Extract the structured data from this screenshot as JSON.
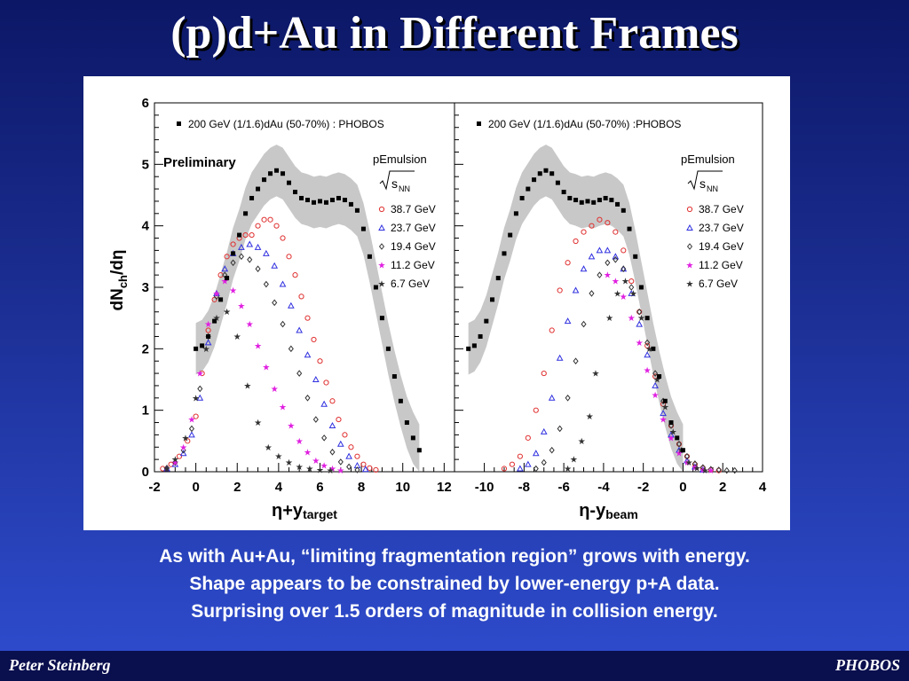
{
  "slide": {
    "title": "(p)d+Au in Different Frames",
    "caption_lines": [
      "As with Au+Au, “limiting fragmentation region” grows with energy.",
      "Shape appears to be constrained by lower-energy p+A data.",
      "Surprising over 1.5 orders of magnitude in collision energy."
    ],
    "footer_left": "Peter Steinberg",
    "footer_right": "PHOBOS"
  },
  "colors": {
    "black": "#000000",
    "red": "#e03030",
    "blue": "#3030e0",
    "dark": "#333333",
    "magenta": "#e020e0",
    "band": "#c8c8c8"
  },
  "chart_data": [
    {
      "type": "scatter",
      "panel": "left",
      "ylabel_main": "dN",
      "ylabel_sub": "ch",
      "ylabel_tail": "/dη",
      "xlabel_main": "η+y",
      "xlabel_sub": "target",
      "xlim": [
        -2,
        12.5
      ],
      "ylim": [
        0,
        6
      ],
      "xticks": [
        "-2",
        "0",
        "2",
        "4",
        "6",
        "8",
        "10",
        "12"
      ],
      "yticks": [
        "0",
        "1",
        "2",
        "3",
        "4",
        "5",
        "6"
      ],
      "annotation": "Preliminary",
      "legend_top": "200 GeV (1/1.6)dAu (50-70%) : PHOBOS",
      "legend_title": "pEmulsion",
      "legend_sqrt": "s",
      "legend_sqrt_sub": "NN",
      "series": [
        {
          "name": "38.7 GeV",
          "marker": "circle",
          "color": "#e03030",
          "x": [
            -1.6,
            -1.2,
            -0.8,
            -0.4,
            0,
            0.3,
            0.6,
            0.9,
            1.2,
            1.5,
            1.8,
            2.1,
            2.4,
            2.7,
            3,
            3.3,
            3.6,
            3.9,
            4.2,
            4.5,
            4.8,
            5.1,
            5.4,
            5.7,
            6,
            6.3,
            6.6,
            6.9,
            7.2,
            7.5,
            7.8,
            8.1,
            8.4,
            8.7
          ],
          "y": [
            0.05,
            0.12,
            0.25,
            0.5,
            0.9,
            1.6,
            2.3,
            2.8,
            3.2,
            3.5,
            3.7,
            3.8,
            3.85,
            3.85,
            4.0,
            4.1,
            4.1,
            4.0,
            3.8,
            3.5,
            3.2,
            2.85,
            2.5,
            2.15,
            1.8,
            1.45,
            1.15,
            0.85,
            0.6,
            0.4,
            0.25,
            0.12,
            0.06,
            0.03
          ]
        },
        {
          "name": "23.7 GeV",
          "marker": "triangle",
          "color": "#3030e0",
          "x": [
            -1.4,
            -1,
            -0.6,
            -0.2,
            0.2,
            0.6,
            1,
            1.4,
            1.8,
            2.2,
            2.6,
            3,
            3.4,
            3.8,
            4.2,
            4.6,
            5,
            5.4,
            5.8,
            6.2,
            6.6,
            7,
            7.4,
            7.8,
            8.2
          ],
          "y": [
            0.05,
            0.12,
            0.3,
            0.6,
            1.2,
            2.1,
            2.9,
            3.3,
            3.55,
            3.65,
            3.7,
            3.65,
            3.55,
            3.35,
            3.05,
            2.7,
            2.3,
            1.9,
            1.5,
            1.1,
            0.75,
            0.45,
            0.25,
            0.1,
            0.04
          ]
        },
        {
          "name": "19.4 GeV",
          "marker": "diamond",
          "color": "#333333",
          "x": [
            -1.4,
            -1,
            -0.6,
            -0.2,
            0.2,
            0.6,
            1,
            1.4,
            1.8,
            2.2,
            2.6,
            3,
            3.4,
            3.8,
            4.2,
            4.6,
            5,
            5.4,
            5.8,
            6.2,
            6.6,
            7,
            7.4,
            7.8
          ],
          "y": [
            0.06,
            0.15,
            0.35,
            0.7,
            1.35,
            2.2,
            2.85,
            3.2,
            3.4,
            3.5,
            3.45,
            3.3,
            3.05,
            2.75,
            2.4,
            2.0,
            1.6,
            1.2,
            0.85,
            0.55,
            0.32,
            0.16,
            0.08,
            0.03
          ]
        },
        {
          "name": "11.2 GeV",
          "marker": "star",
          "color": "#e020e0",
          "x": [
            -1.4,
            -1,
            -0.6,
            -0.2,
            0.2,
            0.6,
            1,
            1.4,
            1.8,
            2.2,
            2.6,
            3,
            3.4,
            3.8,
            4.2,
            4.6,
            5,
            5.4,
            5.8,
            6.2,
            6.6,
            7
          ],
          "y": [
            0.05,
            0.15,
            0.4,
            0.85,
            1.6,
            2.4,
            2.9,
            3.1,
            2.95,
            2.7,
            2.4,
            2.05,
            1.7,
            1.35,
            1.05,
            0.75,
            0.5,
            0.32,
            0.18,
            0.1,
            0.05,
            0.02
          ]
        },
        {
          "name": "6.7 GeV",
          "marker": "star",
          "color": "#333333",
          "x": [
            -1.4,
            -1,
            -0.5,
            0,
            0.5,
            1,
            1.5,
            2,
            2.5,
            3,
            3.5,
            4,
            4.5,
            5,
            5.5,
            6,
            6.5
          ],
          "y": [
            0.05,
            0.2,
            0.55,
            1.2,
            2.0,
            2.5,
            2.6,
            2.2,
            1.4,
            0.8,
            0.4,
            0.25,
            0.15,
            0.08,
            0.05,
            0.03,
            0.02
          ]
        },
        {
          "name": "200 GeV (1/1.6)dAu (50-70%) : PHOBOS",
          "marker": "square",
          "color": "#000000",
          "x": [
            0,
            0.3,
            0.6,
            0.9,
            1.2,
            1.5,
            1.8,
            2.1,
            2.4,
            2.7,
            3,
            3.3,
            3.6,
            3.9,
            4.2,
            4.5,
            4.8,
            5.1,
            5.4,
            5.7,
            6,
            6.3,
            6.6,
            6.9,
            7.2,
            7.5,
            7.8,
            8.1,
            8.4,
            8.7,
            9,
            9.3,
            9.6,
            9.9,
            10.2,
            10.5,
            10.8
          ],
          "y": [
            2.0,
            2.05,
            2.2,
            2.45,
            2.8,
            3.15,
            3.55,
            3.85,
            4.2,
            4.45,
            4.6,
            4.75,
            4.85,
            4.9,
            4.85,
            4.7,
            4.55,
            4.45,
            4.42,
            4.38,
            4.4,
            4.38,
            4.42,
            4.45,
            4.42,
            4.35,
            4.25,
            3.95,
            3.5,
            3.0,
            2.5,
            2.0,
            1.55,
            1.15,
            0.8,
            0.55,
            0.35
          ],
          "band_half_width": 0.42
        }
      ]
    },
    {
      "type": "scatter",
      "panel": "right",
      "xlabel_main": "η-y",
      "xlabel_sub": "beam",
      "xlim": [
        -11.5,
        4
      ],
      "ylim": [
        0,
        6
      ],
      "xticks": [
        "-10",
        "-8",
        "-6",
        "-4",
        "-2",
        "0",
        "2",
        "4"
      ],
      "legend_top": "200 GeV (1/1.6)dAu (50-70%) :PHOBOS",
      "legend_title": "pEmulsion",
      "legend_sqrt": "s",
      "legend_sqrt_sub": "NN",
      "series": [
        {
          "name": "38.7 GeV",
          "marker": "circle",
          "color": "#e03030",
          "x": [
            -9,
            -8.6,
            -8.2,
            -7.8,
            -7.4,
            -7,
            -6.6,
            -6.2,
            -5.8,
            -5.4,
            -5,
            -4.6,
            -4.2,
            -3.8,
            -3.4,
            -3,
            -2.6,
            -2.2,
            -1.8,
            -1.4,
            -1,
            -0.6,
            -0.2,
            0.2,
            0.6,
            1,
            1.4,
            1.8
          ],
          "y": [
            0.05,
            0.12,
            0.25,
            0.55,
            1.0,
            1.6,
            2.3,
            2.95,
            3.4,
            3.75,
            3.9,
            4.0,
            4.1,
            4.05,
            3.9,
            3.6,
            3.1,
            2.6,
            2.05,
            1.55,
            1.1,
            0.75,
            0.45,
            0.25,
            0.12,
            0.06,
            0.03,
            0.02
          ]
        },
        {
          "name": "23.7 GeV",
          "marker": "triangle",
          "color": "#3030e0",
          "x": [
            -8.2,
            -7.8,
            -7.4,
            -7,
            -6.6,
            -6.2,
            -5.8,
            -5.4,
            -5,
            -4.6,
            -4.2,
            -3.8,
            -3.4,
            -3,
            -2.6,
            -2.2,
            -1.8,
            -1.4,
            -1,
            -0.6,
            -0.2,
            0.2,
            0.6,
            1
          ],
          "y": [
            0.05,
            0.12,
            0.3,
            0.65,
            1.2,
            1.85,
            2.45,
            2.95,
            3.3,
            3.5,
            3.6,
            3.6,
            3.5,
            3.3,
            2.9,
            2.4,
            1.9,
            1.4,
            0.95,
            0.6,
            0.35,
            0.18,
            0.08,
            0.03
          ]
        },
        {
          "name": "19.4 GeV",
          "marker": "diamond",
          "color": "#333333",
          "x": [
            -7.4,
            -7,
            -6.6,
            -6.2,
            -5.8,
            -5.4,
            -5,
            -4.6,
            -4.2,
            -3.8,
            -3.4,
            -3,
            -2.6,
            -2.2,
            -1.8,
            -1.4,
            -1,
            -0.6,
            -0.2,
            0.2,
            0.6,
            1,
            1.4,
            1.8,
            2.2,
            2.6
          ],
          "y": [
            0.05,
            0.15,
            0.35,
            0.7,
            1.2,
            1.8,
            2.4,
            2.9,
            3.2,
            3.4,
            3.45,
            3.3,
            3.0,
            2.6,
            2.1,
            1.6,
            1.15,
            0.75,
            0.45,
            0.25,
            0.13,
            0.07,
            0.04,
            0.03,
            0.02,
            0.02
          ]
        },
        {
          "name": "11.2 GeV",
          "marker": "star",
          "color": "#e020e0",
          "x": [
            -3.8,
            -3.4,
            -3,
            -2.6,
            -2.2,
            -1.8,
            -1.4,
            -1,
            -0.6,
            -0.2,
            0.2,
            0.6,
            1,
            1.4
          ],
          "y": [
            3.2,
            3.1,
            2.85,
            2.5,
            2.1,
            1.65,
            1.25,
            0.85,
            0.55,
            0.3,
            0.15,
            0.07,
            0.03,
            0.02
          ]
        },
        {
          "name": "6.7 GeV",
          "marker": "star",
          "color": "#333333",
          "x": [
            -5.8,
            -5.5,
            -5.1,
            -4.7,
            -4.4,
            -3.7,
            -3.3,
            -2.9,
            -2.5,
            -2.1,
            -1.7,
            -1.3,
            -0.9,
            -0.5,
            -0.1,
            0.3,
            0.7,
            1.1
          ],
          "y": [
            0.05,
            0.2,
            0.5,
            0.9,
            1.6,
            2.5,
            2.9,
            3.1,
            2.9,
            2.5,
            2.0,
            1.5,
            1.05,
            0.65,
            0.35,
            0.15,
            0.06,
            0.02
          ]
        },
        {
          "name": "200 GeV (1/1.6)dAu (50-70%) :PHOBOS",
          "marker": "square",
          "color": "#000000",
          "x": [
            -10.8,
            -10.5,
            -10.2,
            -9.9,
            -9.6,
            -9.3,
            -9,
            -8.7,
            -8.4,
            -8.1,
            -7.8,
            -7.5,
            -7.2,
            -6.9,
            -6.6,
            -6.3,
            -6,
            -5.7,
            -5.4,
            -5.1,
            -4.8,
            -4.5,
            -4.2,
            -3.9,
            -3.6,
            -3.3,
            -3,
            -2.7,
            -2.4,
            -2.1,
            -1.8,
            -1.5,
            -1.2,
            -0.9,
            -0.6,
            -0.3,
            0
          ],
          "y": [
            2.0,
            2.05,
            2.2,
            2.45,
            2.8,
            3.15,
            3.55,
            3.85,
            4.2,
            4.45,
            4.6,
            4.75,
            4.85,
            4.9,
            4.85,
            4.7,
            4.55,
            4.45,
            4.42,
            4.38,
            4.4,
            4.38,
            4.42,
            4.45,
            4.42,
            4.35,
            4.25,
            3.95,
            3.5,
            3.0,
            2.5,
            2.0,
            1.55,
            1.15,
            0.8,
            0.55,
            0.35
          ],
          "band_half_width": 0.42
        }
      ]
    }
  ]
}
